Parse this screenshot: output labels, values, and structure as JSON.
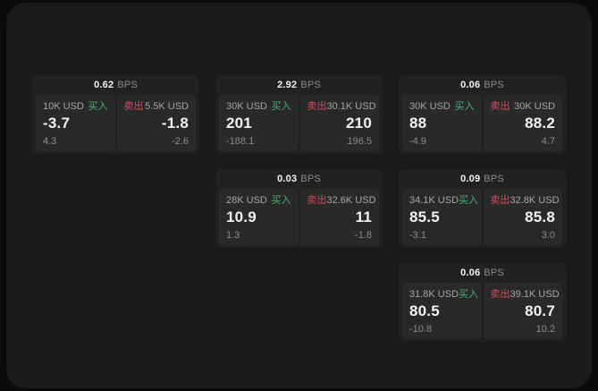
{
  "labels": {
    "bps_suffix": "BPS",
    "buy": "买入",
    "sell": "卖出"
  },
  "colors": {
    "page_bg": "#0b0b0b",
    "surface_bg": "#1a1a1a",
    "card_bg": "#212121",
    "tile_bg": "#292929",
    "text_primary": "#f2f2f2",
    "text_label": "#a6a6a6",
    "text_muted": "#8a8a8a",
    "buy_green": "#4caf78",
    "sell_red": "#d24a63"
  },
  "cards": [
    {
      "bps": "0.62",
      "grid": {
        "row": 1,
        "col": 1
      },
      "buy": {
        "size": "10K USD",
        "value": "-3.7",
        "sub": "4.3"
      },
      "sell": {
        "size": "5.5K USD",
        "value": "-1.8",
        "sub": "-2.6"
      }
    },
    {
      "bps": "2.92",
      "grid": {
        "row": 1,
        "col": 2
      },
      "buy": {
        "size": "30K USD",
        "value": "201",
        "sub": "-188.1"
      },
      "sell": {
        "size": "30.1K USD",
        "value": "210",
        "sub": "196.5"
      }
    },
    {
      "bps": "0.06",
      "grid": {
        "row": 1,
        "col": 3
      },
      "buy": {
        "size": "30K USD",
        "value": "88",
        "sub": "-4.9"
      },
      "sell": {
        "size": "30K USD",
        "value": "88.2",
        "sub": "4.7"
      }
    },
    {
      "bps": "0.03",
      "grid": {
        "row": 2,
        "col": 2
      },
      "buy": {
        "size": "28K USD",
        "value": "10.9",
        "sub": "1.3"
      },
      "sell": {
        "size": "32.6K USD",
        "value": "11",
        "sub": "-1.8"
      }
    },
    {
      "bps": "0.09",
      "grid": {
        "row": 2,
        "col": 3
      },
      "buy": {
        "size": "34.1K USD",
        "value": "85.5",
        "sub": "-3.1"
      },
      "sell": {
        "size": "32.8K USD",
        "value": "85.8",
        "sub": "3.0"
      }
    },
    {
      "bps": "0.06",
      "grid": {
        "row": 3,
        "col": 3
      },
      "buy": {
        "size": "31.8K USD",
        "value": "80.5",
        "sub": "-10.8"
      },
      "sell": {
        "size": "39.1K USD",
        "value": "80.7",
        "sub": "10.2"
      }
    }
  ]
}
